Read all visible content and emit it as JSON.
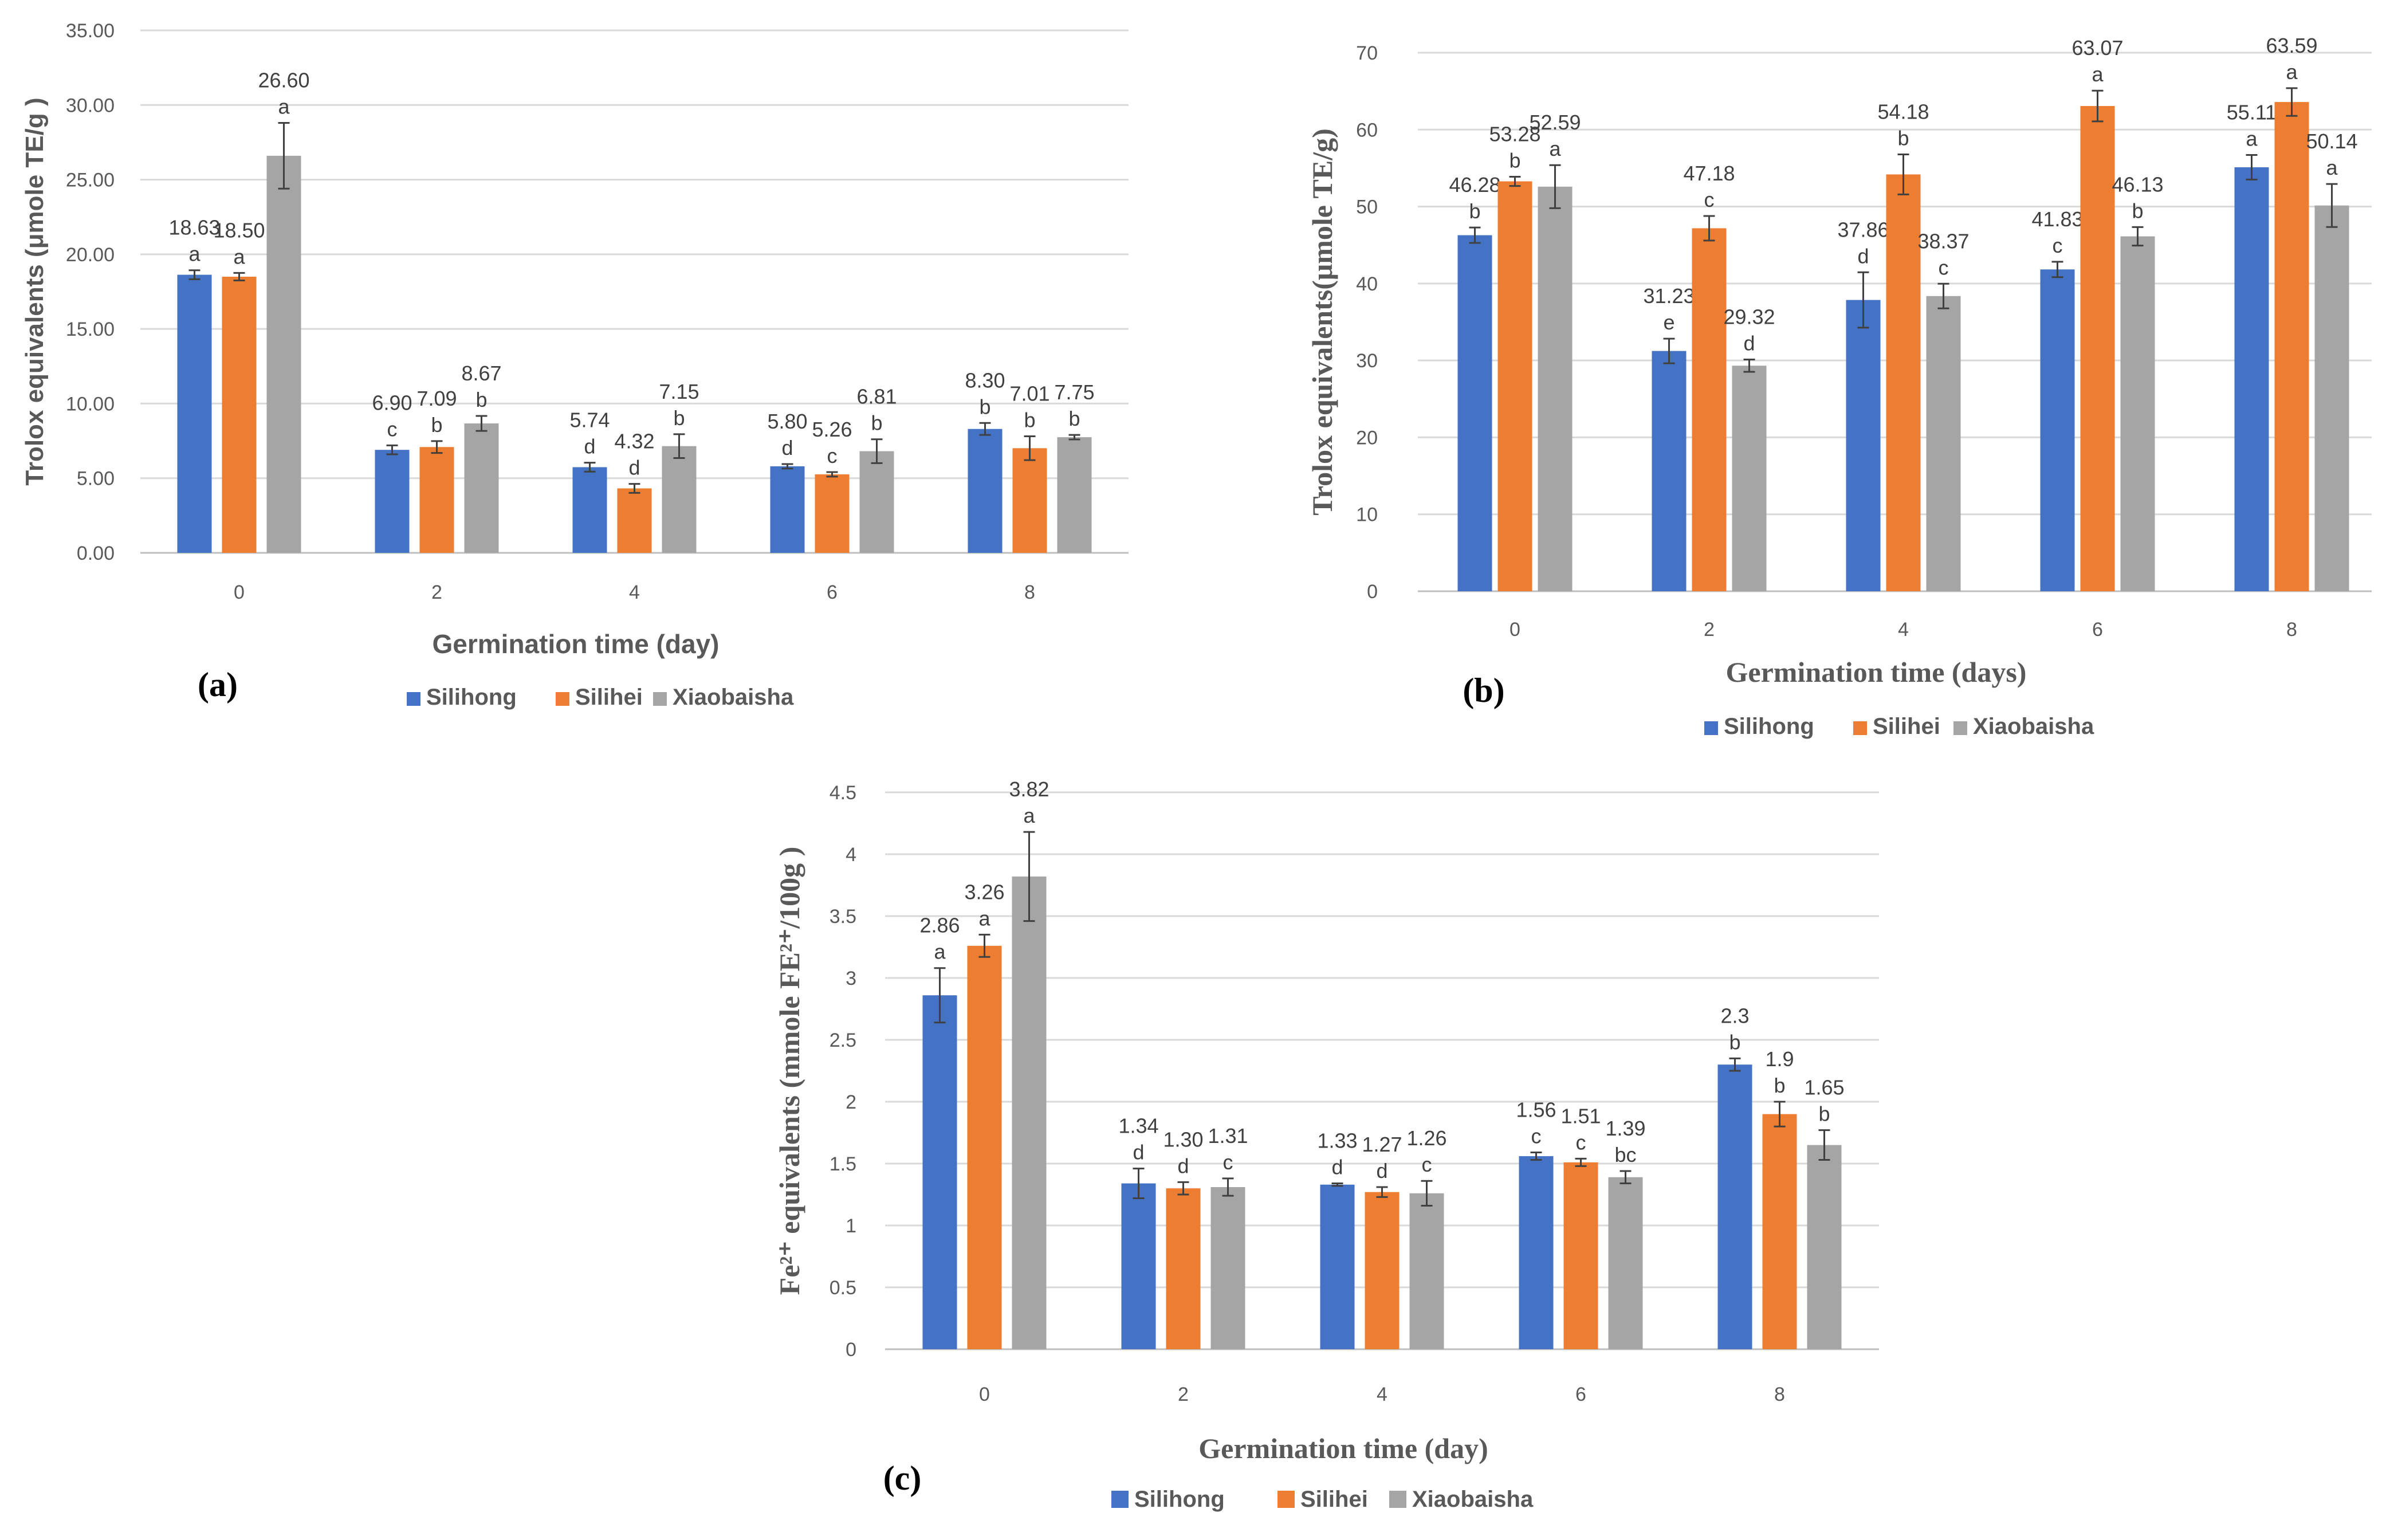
{
  "colors": {
    "Silihong": "#4472C4",
    "Silihei": "#ED7D31",
    "Xiaobaisha": "#A5A5A5"
  },
  "chart_data": [
    {
      "type": "bar",
      "panel_label": "(a)",
      "xlabel": "Germination time (day)",
      "ylabel": "Trolox equivalents (μmole TE/g )",
      "ylim": [
        0,
        35
      ],
      "yticks": [
        "0.00",
        "5.00",
        "10.00",
        "15.00",
        "20.00",
        "25.00",
        "30.00",
        "35.00"
      ],
      "categories": [
        "0",
        "2",
        "4",
        "6",
        "8"
      ],
      "series": [
        {
          "name": "Silihong",
          "values": [
            18.63,
            6.9,
            5.74,
            5.8,
            8.3
          ],
          "labels": [
            "18.63",
            "6.90",
            "5.74",
            "5.80",
            "8.30"
          ],
          "errors": [
            0.3,
            0.3,
            0.3,
            0.15,
            0.4
          ],
          "sig": [
            "a",
            "c",
            "d",
            "d",
            "b"
          ]
        },
        {
          "name": "Silihei",
          "values": [
            18.5,
            7.09,
            4.32,
            5.26,
            7.01
          ],
          "labels": [
            "18.50",
            "7.09",
            "4.32",
            "5.26",
            "7.01"
          ],
          "errors": [
            0.25,
            0.4,
            0.3,
            0.15,
            0.8
          ],
          "sig": [
            "a",
            "b",
            "d",
            "c",
            "b"
          ]
        },
        {
          "name": "Xiaobaisha",
          "values": [
            26.6,
            8.67,
            7.15,
            6.81,
            7.75
          ],
          "labels": [
            "26.60",
            "8.67",
            "7.15",
            "6.81",
            "7.75"
          ],
          "errors": [
            2.2,
            0.5,
            0.8,
            0.8,
            0.15
          ],
          "sig": [
            "a",
            "b",
            "b",
            "b",
            "b"
          ]
        }
      ]
    },
    {
      "type": "bar",
      "panel_label": "(b)",
      "xlabel": "Germination  time (days)",
      "ylabel": "Trolox equivalents(μmole TE/g)",
      "ylim": [
        0,
        70
      ],
      "yticks": [
        "0",
        "10",
        "20",
        "30",
        "40",
        "50",
        "60",
        "70"
      ],
      "categories": [
        "0",
        "2",
        "4",
        "6",
        "8"
      ],
      "series": [
        {
          "name": "Silihong",
          "values": [
            46.28,
            31.23,
            37.86,
            41.83,
            55.11
          ],
          "labels": [
            "46.28",
            "31.23",
            "37.86",
            "41.83",
            "55.11"
          ],
          "errors": [
            1.0,
            1.6,
            3.6,
            1.0,
            1.6
          ],
          "sig": [
            "b",
            "e",
            "d",
            "c",
            "a"
          ]
        },
        {
          "name": "Silihei",
          "values": [
            53.28,
            47.18,
            54.18,
            63.07,
            63.59
          ],
          "labels": [
            "53.28",
            "47.18",
            "54.18",
            "63.07",
            "63.59"
          ],
          "errors": [
            0.6,
            1.6,
            2.6,
            2.0,
            1.8
          ],
          "sig": [
            "b",
            "c",
            "b",
            "a",
            "a"
          ]
        },
        {
          "name": "Xiaobaisha",
          "values": [
            52.59,
            29.32,
            38.37,
            46.13,
            50.14
          ],
          "labels": [
            "52.59",
            "29.32",
            "38.37",
            "46.13",
            "50.14"
          ],
          "errors": [
            2.8,
            0.8,
            1.6,
            1.2,
            2.8
          ],
          "sig": [
            "a",
            "d",
            "c",
            "b",
            "a"
          ]
        }
      ]
    },
    {
      "type": "bar",
      "panel_label": "(c)",
      "xlabel": "Germination  time (day)",
      "ylabel": "Fe²⁺ equivalents  (mmole  FE²⁺/100g  )",
      "ylim": [
        0,
        4.5
      ],
      "yticks": [
        "0",
        "0.5",
        "1",
        "1.5",
        "2",
        "2.5",
        "3",
        "3.5",
        "4",
        "4.5"
      ],
      "categories": [
        "0",
        "2",
        "4",
        "6",
        "8"
      ],
      "series": [
        {
          "name": "Silihong",
          "values": [
            2.86,
            1.34,
            1.33,
            1.56,
            2.3
          ],
          "labels": [
            "2.86",
            "1.34",
            "1.33",
            "1.56",
            "2.3"
          ],
          "errors": [
            0.22,
            0.12,
            0.01,
            0.03,
            0.05
          ],
          "sig": [
            "a",
            "d",
            "d",
            "c",
            "b"
          ]
        },
        {
          "name": "Silihei",
          "values": [
            3.26,
            1.3,
            1.27,
            1.51,
            1.9
          ],
          "labels": [
            "3.26",
            "1.30",
            "1.27",
            "1.51",
            "1.9"
          ],
          "errors": [
            0.09,
            0.05,
            0.04,
            0.03,
            0.1
          ],
          "sig": [
            "a",
            "d",
            "d",
            "c",
            "b"
          ]
        },
        {
          "name": "Xiaobaisha",
          "values": [
            3.82,
            1.31,
            1.26,
            1.39,
            1.65
          ],
          "labels": [
            "3.82",
            "1.31",
            "1.26",
            "1.39",
            "1.65"
          ],
          "errors": [
            0.36,
            0.07,
            0.1,
            0.05,
            0.12
          ],
          "sig": [
            "a",
            "c",
            "c",
            "bc",
            "b"
          ]
        }
      ]
    }
  ]
}
